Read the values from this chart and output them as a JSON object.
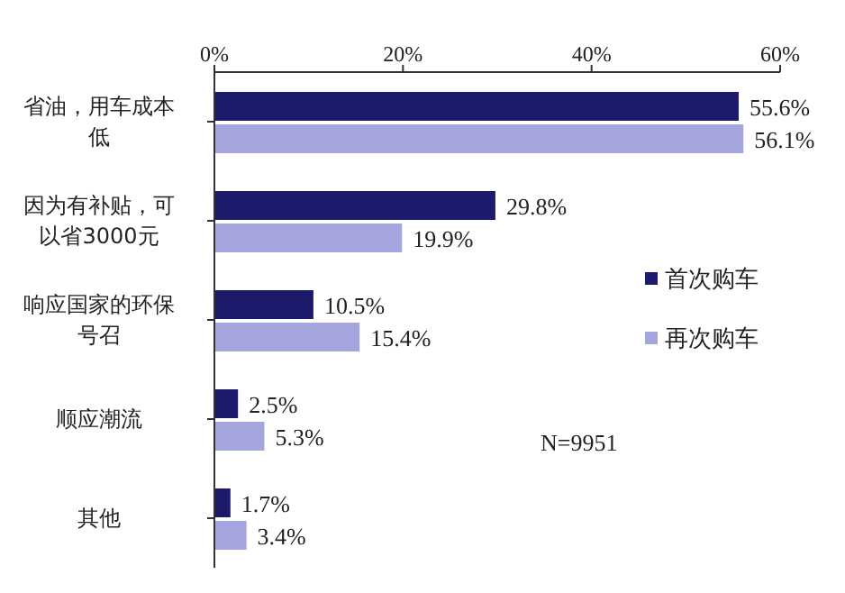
{
  "chart_data": {
    "type": "bar",
    "orientation": "horizontal",
    "categories": [
      "省油，用车成本低",
      "因为有补贴，可以省3000元",
      "响应国家的环保号召",
      "顺应潮流",
      "其他"
    ],
    "series": [
      {
        "name": "首次购车",
        "color": "#1c1a6b",
        "values": [
          55.6,
          29.8,
          10.5,
          2.5,
          1.7
        ],
        "value_labels": [
          "55.6%",
          "29.8%",
          "10.5%",
          "2.5%",
          "1.7%"
        ]
      },
      {
        "name": "再次购车",
        "color": "#a5a5dd",
        "values": [
          56.1,
          19.9,
          15.4,
          5.3,
          3.4
        ],
        "value_labels": [
          "56.1%",
          "19.9%",
          "15.4%",
          "5.3%",
          "3.4%"
        ]
      }
    ],
    "xlim": [
      0,
      60
    ],
    "xticks": [
      {
        "value": 0,
        "label": "0%"
      },
      {
        "value": 20,
        "label": "20%"
      },
      {
        "value": 40,
        "label": "40%"
      },
      {
        "value": 60,
        "label": "60%"
      }
    ],
    "legend": "right",
    "annotations": [
      "N=9951"
    ]
  }
}
